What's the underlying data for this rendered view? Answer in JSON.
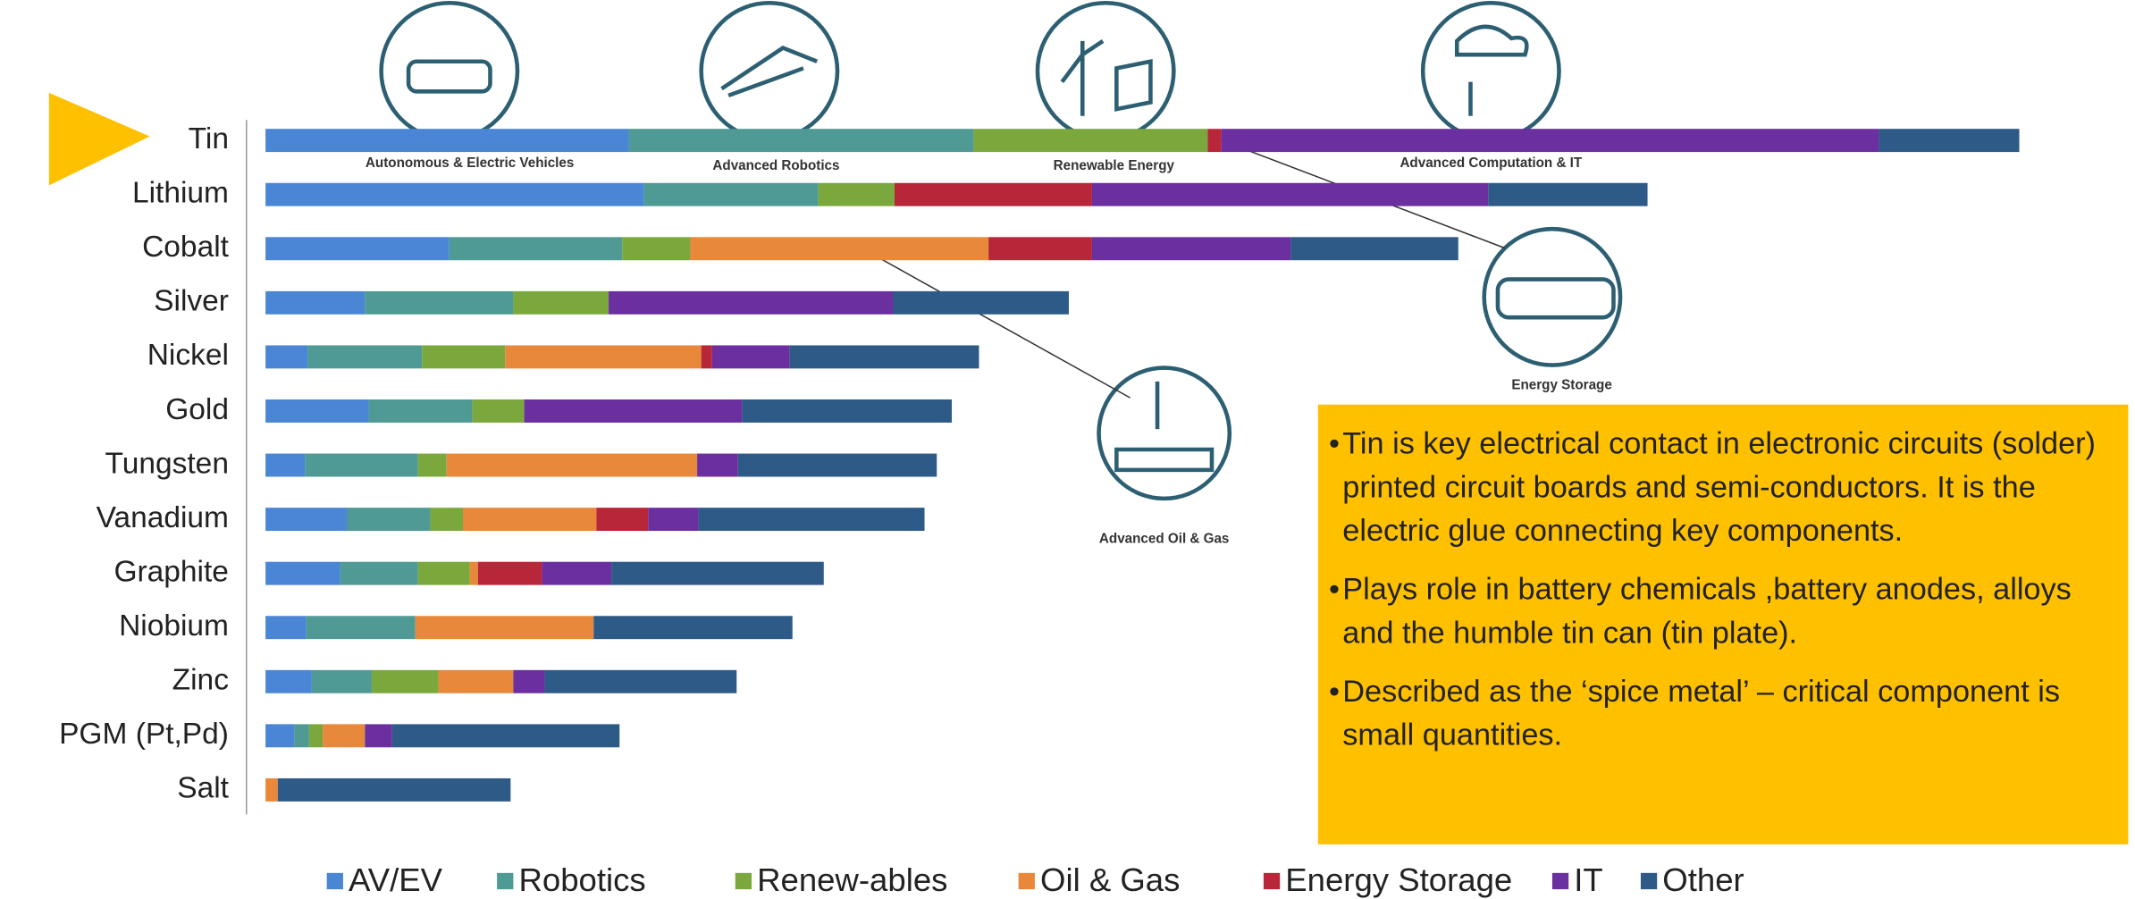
{
  "chart_data": {
    "type": "stacked_bar",
    "orientation": "horizontal",
    "categories": [
      "Tin",
      "Lithium",
      "Cobalt",
      "Silver",
      "Nickel",
      "Gold",
      "Tungsten",
      "Vanadium",
      "Graphite",
      "Niobium",
      "Zinc",
      "PGM (Pt,Pd)",
      "Salt"
    ],
    "series": [
      {
        "name": "AV/EV",
        "color": "#4a86d4",
        "values": [
          26.7,
          27.8,
          13.5,
          7.3,
          3.1,
          7.6,
          2.9,
          6.0,
          5.5,
          3.0,
          3.4,
          2.1,
          0
        ]
      },
      {
        "name": "Robotics",
        "color": "#4f9a94",
        "values": [
          25.3,
          12.8,
          12.7,
          10.9,
          8.4,
          7.6,
          8.3,
          6.1,
          5.7,
          8.0,
          4.4,
          1.1,
          0
        ]
      },
      {
        "name": "Renew-ables",
        "color": "#7aa83c",
        "values": [
          17.2,
          5.6,
          5.0,
          7.0,
          6.1,
          3.8,
          2.1,
          2.4,
          3.8,
          0,
          4.9,
          1.0,
          0
        ]
      },
      {
        "name": "Oil & Gas",
        "color": "#e8883a",
        "values": [
          0,
          0,
          21.9,
          0,
          14.4,
          0,
          18.4,
          9.8,
          0.6,
          13.1,
          5.5,
          3.1,
          0.9
        ]
      },
      {
        "name": "Energy Storage",
        "color": "#b8263a",
        "values": [
          1.0,
          14.5,
          7.6,
          0,
          0.8,
          0,
          0,
          3.8,
          4.7,
          0,
          0,
          0,
          0
        ]
      },
      {
        "name": "IT",
        "color": "#6b2fa0",
        "values": [
          48.3,
          29.1,
          14.6,
          20.9,
          5.7,
          16.0,
          3.0,
          3.7,
          5.1,
          0,
          2.3,
          2.0,
          0
        ]
      },
      {
        "name": "Other",
        "color": "#2e5a87",
        "values": [
          10.3,
          11.7,
          12.3,
          12.9,
          13.9,
          15.4,
          14.6,
          16.6,
          15.6,
          14.6,
          14.1,
          16.7,
          17.1
        ]
      }
    ],
    "annotations": [
      "Autonomous & Electric Vehicles",
      "Advanced Robotics",
      "Renewable Energy",
      "Advanced Computation & IT",
      "Energy Storage",
      "Advanced Oil & Gas"
    ],
    "notes": [
      "Tin is key electrical contact in electronic circuits (solder) printed circuit boards and semi-conductors. It is the electric glue connecting key components.",
      "Plays role in battery chemicals ,battery anodes, alloys and the humble tin can (tin plate).",
      "Described as the ‘spice metal’ – critical component is small quantities."
    ],
    "legend": "bottom"
  }
}
